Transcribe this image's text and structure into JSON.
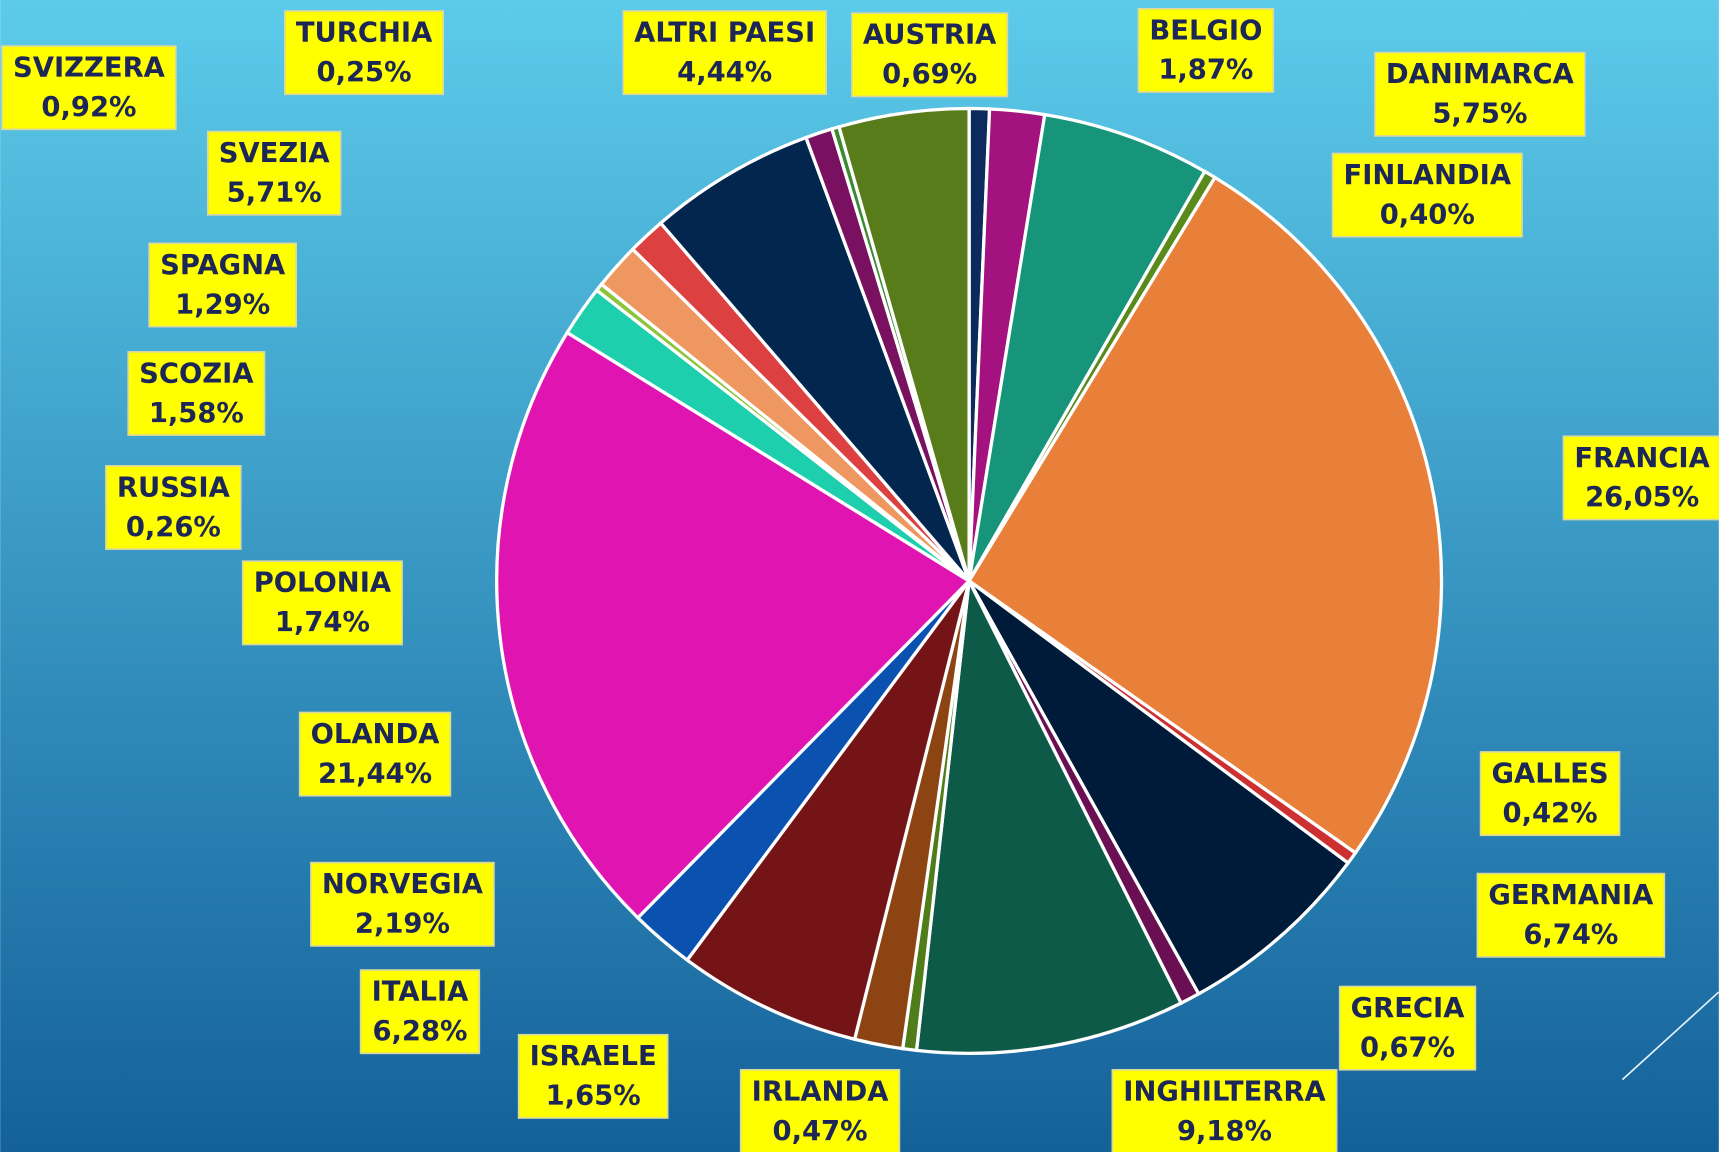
{
  "chart_data": {
    "type": "pie",
    "categories": [
      "AUSTRIA",
      "BELGIO",
      "DANIMARCA",
      "FINLANDIA",
      "FRANCIA",
      "GALLES",
      "GERMANIA",
      "GRECIA",
      "INGHILTERRA",
      "IRLANDA",
      "ISRAELE",
      "ITALIA",
      "NORVEGIA",
      "OLANDA",
      "POLONIA",
      "RUSSIA",
      "SCOZIA",
      "SPAGNA",
      "SVEZIA",
      "SVIZZERA",
      "TURCHIA",
      "ALTRI PAESI"
    ],
    "values": [
      0.69,
      1.87,
      5.75,
      0.4,
      26.05,
      0.42,
      6.74,
      0.67,
      9.18,
      0.47,
      1.65,
      6.28,
      2.19,
      21.44,
      1.74,
      0.26,
      1.58,
      1.29,
      5.71,
      0.92,
      0.25,
      4.44
    ],
    "value_labels": [
      "0,69%",
      "1,87%",
      "5,75%",
      "0,40%",
      "26,05%",
      "0,42%",
      "6,74%",
      "0,67%",
      "9,18%",
      "0,47%",
      "1,65%",
      "6,28%",
      "2,19%",
      "21,44%",
      "1,74%",
      "0,26%",
      "1,58%",
      "1,29%",
      "5,71%",
      "0,92%",
      "0,25%",
      "4,44%"
    ],
    "colors": [
      "#0d2a5c",
      "#a3127e",
      "#16957a",
      "#5a8a1c",
      "#e8803a",
      "#cc3030",
      "#001b3a",
      "#6a0f52",
      "#0e5a48",
      "#4e7d1a",
      "#8c4512",
      "#751416",
      "#0b52b0",
      "#e014b0",
      "#1dcfac",
      "#8cc43c",
      "#ee9760",
      "#dc4040",
      "#03264f",
      "#7a1060",
      "#3c8a30",
      "#587c1a"
    ]
  }
}
